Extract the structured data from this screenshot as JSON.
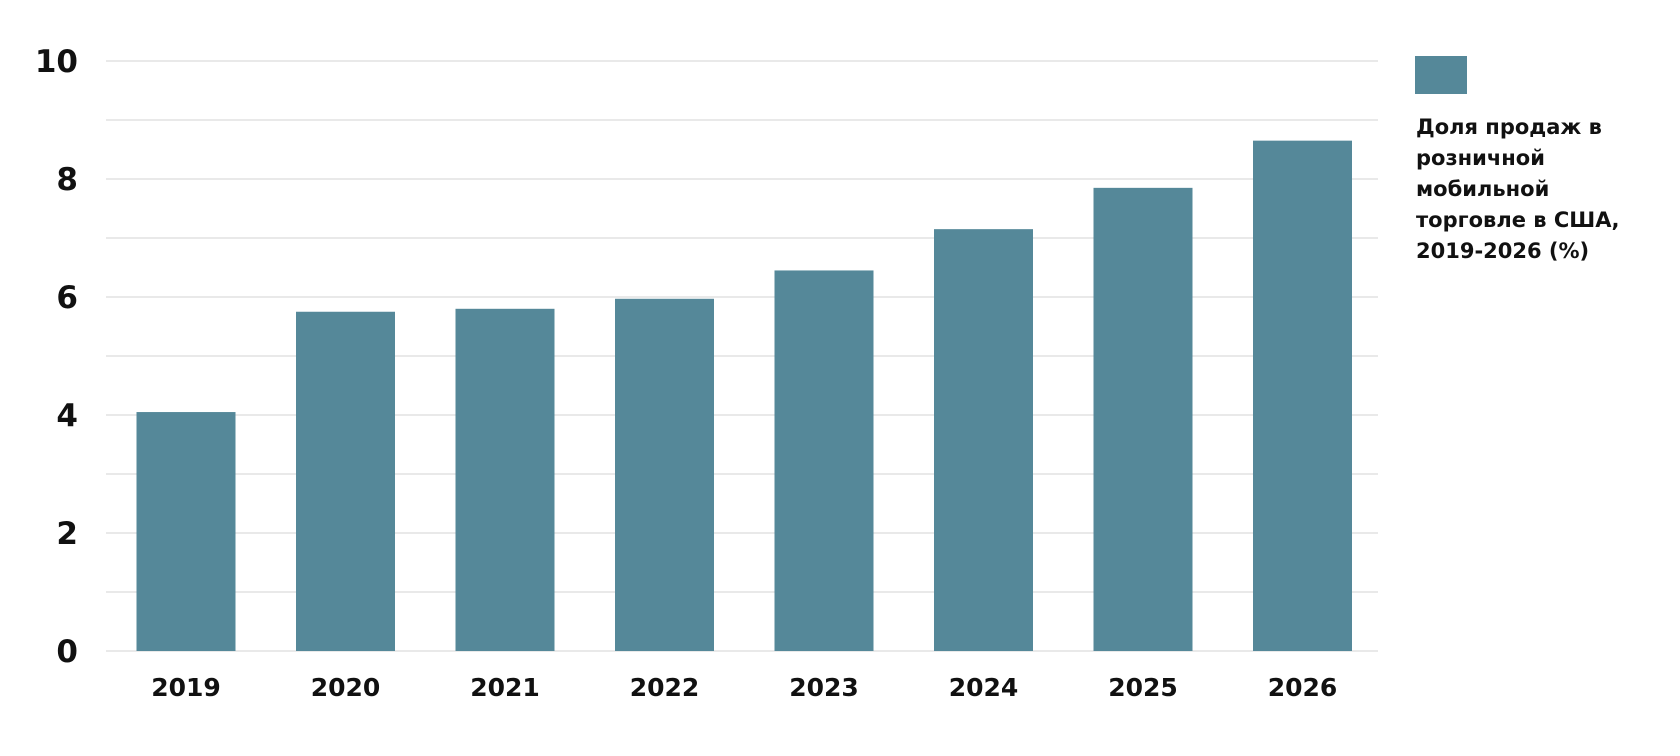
{
  "chart_data": {
    "type": "bar",
    "categories": [
      "2019",
      "2020",
      "2021",
      "2022",
      "2023",
      "2024",
      "2025",
      "2026"
    ],
    "series": [
      {
        "name": "Доля продаж в розничной мобильной торговле в США, 2019-2026 (%)",
        "values": [
          4.05,
          5.75,
          5.8,
          5.97,
          6.45,
          7.15,
          7.85,
          8.65
        ],
        "color": "#558899"
      }
    ],
    "legend": {
      "position": "right",
      "lines": [
        "Доля продаж в",
        "розничной",
        "мобильной",
        "торговле в США,",
        "2019-2026 (%)"
      ]
    },
    "y_ticks": [
      "0",
      "2",
      "4",
      "6",
      "8",
      "10"
    ],
    "ylim": [
      0,
      10
    ],
    "grid": true,
    "gridline_step": 1,
    "gridline_color": "#e9e9e9",
    "title": "",
    "xlabel": "",
    "ylabel": ""
  }
}
